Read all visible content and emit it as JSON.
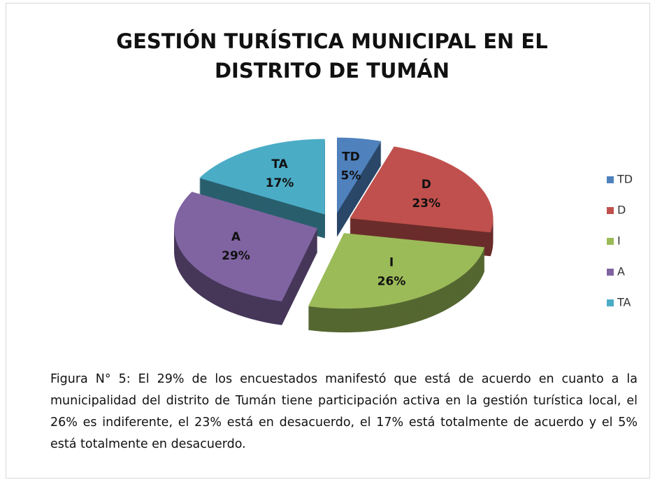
{
  "chart_data": {
    "type": "pie",
    "title": "GESTIÓN TURÍSTICA MUNICIPAL EN EL DISTRITO DE TUMÁN",
    "categories": [
      "TD",
      "D",
      "I",
      "A",
      "TA"
    ],
    "values": [
      5,
      23,
      26,
      29,
      17
    ],
    "value_labels": [
      "5%",
      "23%",
      "26%",
      "29%",
      "17%"
    ],
    "colors": [
      "#4f81bd",
      "#c0504d",
      "#9bbb59",
      "#8064a2",
      "#4bacc6"
    ],
    "legend": "right",
    "caption": "Figura N° 5: El 29% de los encuestados manifestó que está de acuerdo en cuanto a la municipalidad del distrito de Tumán  tiene participación activa en la gestión turística local, el 26% es indiferente, el 23% está en desacuerdo, el 17% está totalmente de acuerdo y el 5% está totalmente en desacuerdo."
  }
}
